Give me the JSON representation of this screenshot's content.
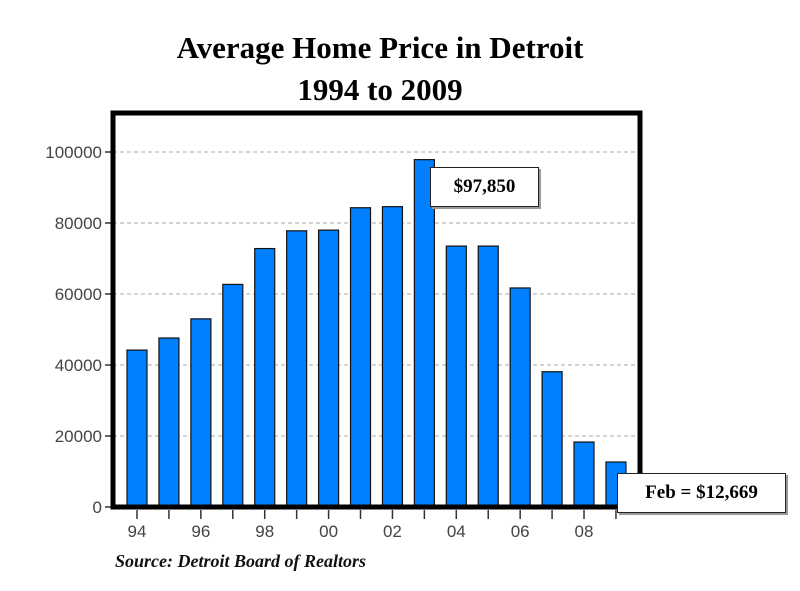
{
  "chart_data": {
    "type": "bar",
    "title": "Average Home Price in Detroit",
    "subtitle": "1994 to 2009",
    "categories": [
      "1994",
      "1995",
      "1996",
      "1997",
      "1998",
      "1999",
      "2000",
      "2001",
      "2002",
      "2003",
      "2004",
      "2005",
      "2006",
      "2007",
      "2008",
      "2009"
    ],
    "x_tick_labels": [
      "94",
      "96",
      "98",
      "00",
      "02",
      "04",
      "06",
      "08"
    ],
    "values": [
      44200,
      47600,
      53000,
      62700,
      72800,
      77800,
      78000,
      84300,
      84600,
      97850,
      73500,
      73500,
      61700,
      38100,
      18300,
      12669
    ],
    "ylim": [
      0,
      110000
    ],
    "y_ticks": [
      "0",
      "20000",
      "40000",
      "60000",
      "80000",
      "100000"
    ],
    "grid": true,
    "bar_color": "#0080ff",
    "annotations": [
      {
        "label": "$97,850",
        "category": "2003"
      },
      {
        "label": "Feb = $12,669",
        "category": "2009"
      }
    ],
    "source": "Source: Detroit Board of Realtors"
  }
}
